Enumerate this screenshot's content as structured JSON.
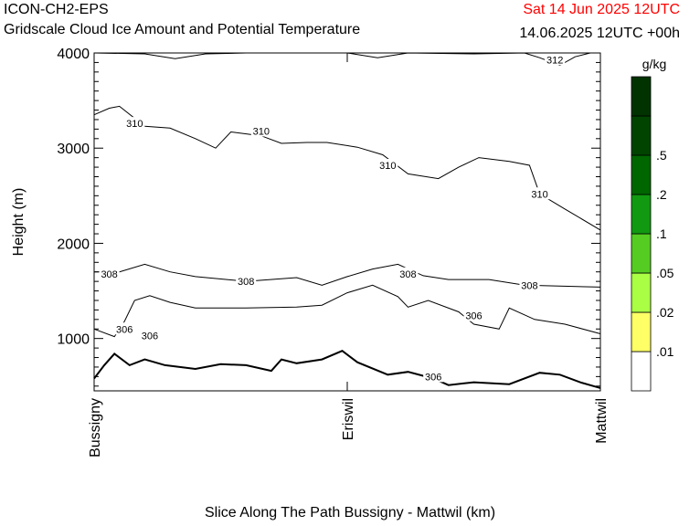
{
  "header": {
    "model": "ICON-CH2-EPS",
    "title": "Gridscale Cloud Ice Amount and Potential Temperature",
    "valid_time": "Sat 14 Jun 2025 12UTC",
    "run_time": "14.06.2025 12UTC +00h"
  },
  "colors": {
    "valid_time": "#ff0000",
    "contour": "#000000",
    "colorbar": [
      "#ffffff",
      "#ffff66",
      "#aaff44",
      "#55cc22",
      "#119911",
      "#006600",
      "#004400",
      "#003300"
    ]
  },
  "chart_data": {
    "type": "contour",
    "title": "Gridscale Cloud Ice Amount and Potential Temperature",
    "xlabel": "Slice Along The Path Bussigny - Mattwil (km)",
    "ylabel": "Height (m)",
    "ylim": [
      450,
      4000
    ],
    "y_ticks": [
      "1000",
      "2000",
      "3000",
      "4000"
    ],
    "x_ticks": [
      "Bussigny",
      "Eriswil",
      "Mattwil"
    ],
    "colorbar": {
      "unit": "g/kg",
      "labels": [
        ".01",
        ".02",
        ".05",
        ".1",
        ".2",
        ".5"
      ]
    },
    "contour_labels": [
      {
        "value": "306",
        "x": 0.06,
        "y": 1100
      },
      {
        "value": "306",
        "x": 0.11,
        "y": 1030
      },
      {
        "value": "306",
        "x": 0.67,
        "y": 600
      },
      {
        "value": "306",
        "x": 0.75,
        "y": 1240
      },
      {
        "value": "308",
        "x": 0.03,
        "y": 1680
      },
      {
        "value": "308",
        "x": 0.3,
        "y": 1600
      },
      {
        "value": "308",
        "x": 0.62,
        "y": 1680
      },
      {
        "value": "308",
        "x": 0.86,
        "y": 1560
      },
      {
        "value": "310",
        "x": 0.08,
        "y": 3260
      },
      {
        "value": "310",
        "x": 0.33,
        "y": 3180
      },
      {
        "value": "310",
        "x": 0.58,
        "y": 2820
      },
      {
        "value": "310",
        "x": 0.88,
        "y": 2520
      },
      {
        "value": "312",
        "x": 0.91,
        "y": 3930
      }
    ],
    "terrain": [
      [
        0.0,
        580
      ],
      [
        0.02,
        720
      ],
      [
        0.04,
        840
      ],
      [
        0.07,
        720
      ],
      [
        0.1,
        780
      ],
      [
        0.14,
        720
      ],
      [
        0.2,
        680
      ],
      [
        0.25,
        730
      ],
      [
        0.3,
        720
      ],
      [
        0.35,
        660
      ],
      [
        0.37,
        780
      ],
      [
        0.4,
        740
      ],
      [
        0.45,
        780
      ],
      [
        0.49,
        870
      ],
      [
        0.52,
        750
      ],
      [
        0.58,
        620
      ],
      [
        0.62,
        650
      ],
      [
        0.67,
        580
      ],
      [
        0.7,
        510
      ],
      [
        0.75,
        540
      ],
      [
        0.82,
        520
      ],
      [
        0.88,
        640
      ],
      [
        0.92,
        620
      ],
      [
        0.96,
        540
      ],
      [
        1.0,
        480
      ]
    ],
    "isotherms": [
      {
        "level": "306",
        "points": [
          [
            0.0,
            1100
          ],
          [
            0.04,
            1020
          ],
          [
            0.06,
            1180
          ],
          [
            0.08,
            1400
          ],
          [
            0.11,
            1450
          ],
          [
            0.15,
            1380
          ],
          [
            0.2,
            1320
          ],
          [
            0.3,
            1320
          ],
          [
            0.4,
            1330
          ],
          [
            0.45,
            1350
          ],
          [
            0.5,
            1480
          ],
          [
            0.55,
            1560
          ],
          [
            0.6,
            1440
          ],
          [
            0.62,
            1330
          ],
          [
            0.66,
            1400
          ],
          [
            0.72,
            1280
          ],
          [
            0.75,
            1150
          ],
          [
            0.8,
            1100
          ],
          [
            0.82,
            1320
          ],
          [
            0.87,
            1200
          ],
          [
            0.93,
            1150
          ],
          [
            1.0,
            1050
          ]
        ]
      },
      {
        "level": "308",
        "points": [
          [
            0.0,
            1700
          ],
          [
            0.05,
            1700
          ],
          [
            0.1,
            1780
          ],
          [
            0.15,
            1700
          ],
          [
            0.2,
            1650
          ],
          [
            0.3,
            1600
          ],
          [
            0.4,
            1640
          ],
          [
            0.45,
            1560
          ],
          [
            0.5,
            1650
          ],
          [
            0.55,
            1730
          ],
          [
            0.6,
            1780
          ],
          [
            0.65,
            1660
          ],
          [
            0.7,
            1620
          ],
          [
            0.78,
            1620
          ],
          [
            0.85,
            1560
          ],
          [
            1.0,
            1540
          ]
        ]
      },
      {
        "level": "310",
        "points": [
          [
            0.0,
            3350
          ],
          [
            0.03,
            3420
          ],
          [
            0.05,
            3440
          ],
          [
            0.1,
            3230
          ],
          [
            0.15,
            3210
          ],
          [
            0.2,
            3100
          ],
          [
            0.24,
            3000
          ],
          [
            0.27,
            3170
          ],
          [
            0.33,
            3130
          ],
          [
            0.37,
            3050
          ],
          [
            0.42,
            3060
          ],
          [
            0.46,
            3060
          ],
          [
            0.52,
            3010
          ],
          [
            0.57,
            2930
          ],
          [
            0.62,
            2730
          ],
          [
            0.68,
            2680
          ],
          [
            0.72,
            2800
          ],
          [
            0.76,
            2900
          ],
          [
            0.82,
            2860
          ],
          [
            0.86,
            2820
          ],
          [
            0.88,
            2520
          ],
          [
            0.93,
            2360
          ],
          [
            1.0,
            2140
          ]
        ]
      },
      {
        "level": "312",
        "points": [
          [
            0.0,
            4000
          ],
          [
            0.1,
            3990
          ],
          [
            0.16,
            3940
          ],
          [
            0.22,
            3990
          ],
          [
            0.3,
            4000
          ],
          [
            0.5,
            4000
          ],
          [
            0.56,
            3950
          ],
          [
            0.62,
            4000
          ],
          [
            0.75,
            3990
          ],
          [
            0.85,
            4000
          ],
          [
            0.88,
            3950
          ],
          [
            0.92,
            3870
          ],
          [
            0.95,
            3960
          ],
          [
            0.98,
            4000
          ]
        ]
      }
    ]
  }
}
